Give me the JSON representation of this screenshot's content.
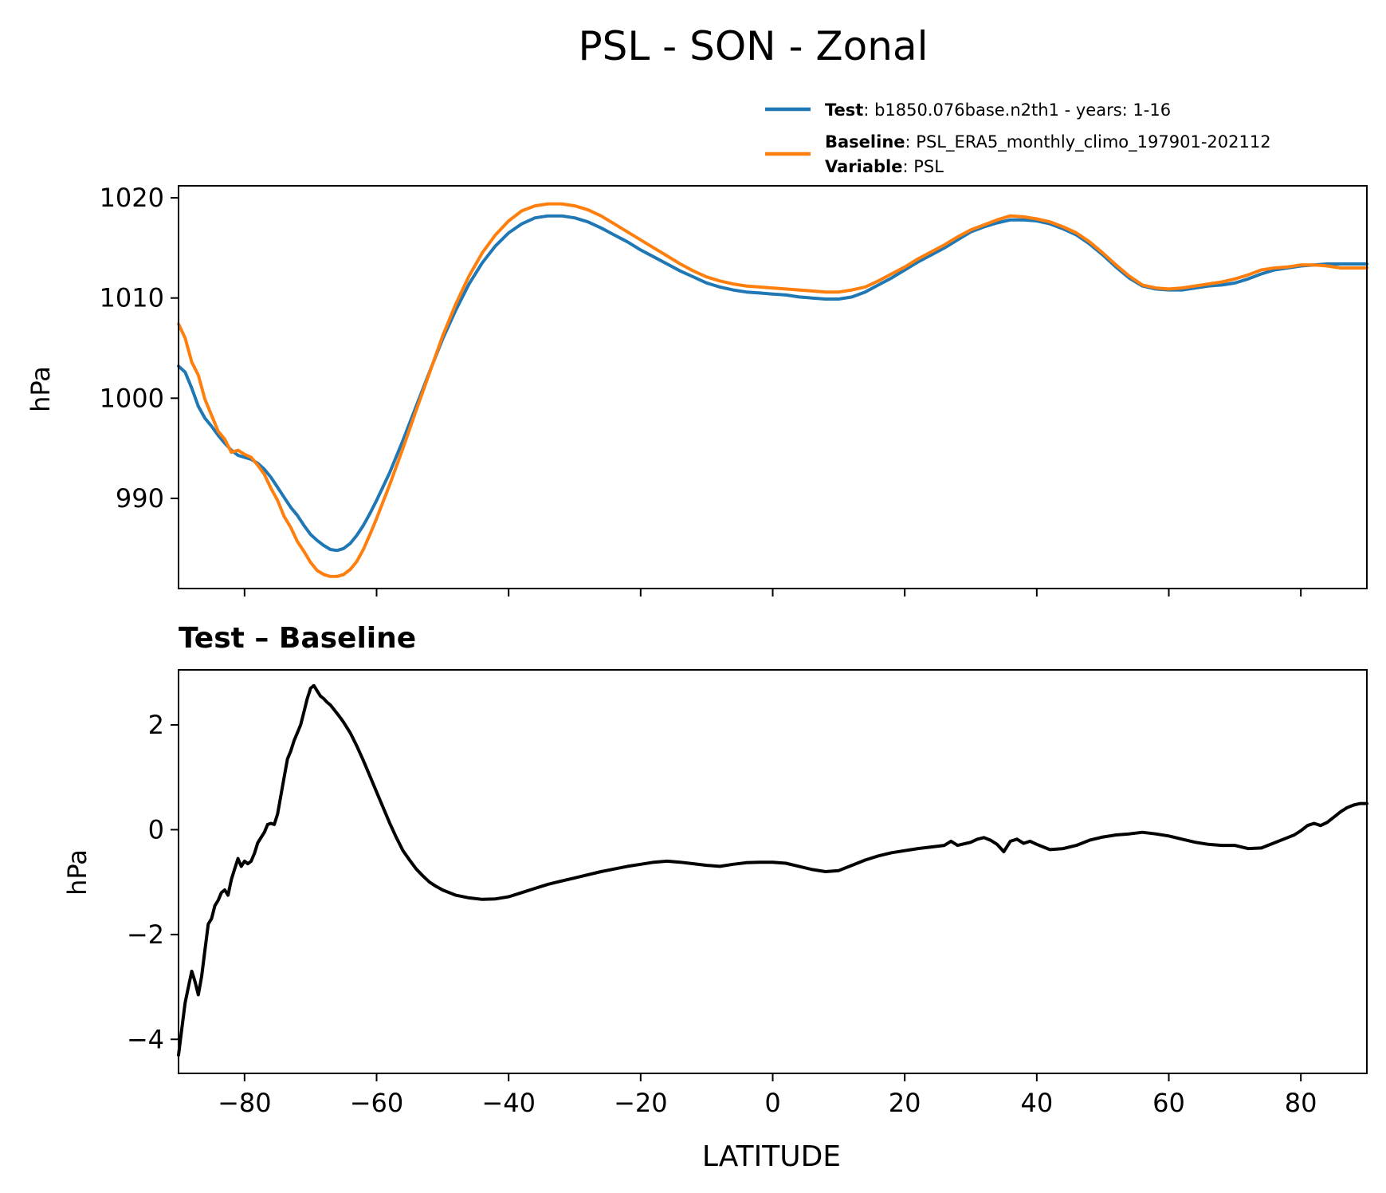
{
  "figure": {
    "title": "PSL - SON - Zonal"
  },
  "legend": {
    "placement": "above top panel, right",
    "entries": [
      {
        "key": "Test",
        "sep": ": ",
        "text": "b1850.076base.n2th1 - years: 1-16",
        "color": "#1f77b4",
        "has_line": true
      },
      {
        "key": "Baseline",
        "sep": ": ",
        "text": "PSL_ERA5_monthly_climo_197901-202112",
        "color": "#ff7f0e",
        "has_line": true
      },
      {
        "key": "Variable",
        "sep": ": ",
        "text": "PSL",
        "color": "",
        "has_line": false
      }
    ]
  },
  "chart_data": [
    {
      "type": "line",
      "title": "",
      "xlabel": "",
      "ylabel": "hPa",
      "xlim": [
        -90,
        90
      ],
      "ylim": [
        981,
        1021.2
      ],
      "xticks": [
        -80,
        -60,
        -40,
        -20,
        0,
        20,
        40,
        60,
        80
      ],
      "yticks": [
        990,
        1000,
        1010,
        1020
      ],
      "show_xtick_labels": false,
      "grid": false,
      "series": [
        {
          "name": "Test",
          "color": "#1f77b4",
          "x": [
            -90,
            -89,
            -88,
            -87,
            -86,
            -85,
            -84,
            -83,
            -82,
            -81,
            -80,
            -79,
            -78,
            -77,
            -76,
            -75,
            -74,
            -73,
            -72,
            -71,
            -70,
            -69,
            -68,
            -67,
            -66,
            -65,
            -64,
            -63,
            -62,
            -61,
            -60,
            -58,
            -56,
            -54,
            -52,
            -50,
            -48,
            -46,
            -44,
            -42,
            -40,
            -38,
            -36,
            -34,
            -32,
            -30,
            -28,
            -26,
            -24,
            -22,
            -20,
            -18,
            -16,
            -14,
            -12,
            -10,
            -8,
            -6,
            -4,
            -2,
            0,
            2,
            4,
            6,
            8,
            10,
            12,
            14,
            16,
            18,
            20,
            22,
            24,
            26,
            28,
            30,
            32,
            34,
            36,
            38,
            40,
            42,
            44,
            46,
            48,
            50,
            52,
            54,
            56,
            58,
            60,
            62,
            64,
            66,
            68,
            70,
            72,
            74,
            76,
            78,
            80,
            82,
            84,
            86,
            88,
            90
          ],
          "y": [
            1003.2,
            1002.6,
            1001.0,
            999.2,
            998.0,
            997.2,
            996.3,
            995.5,
            994.8,
            994.3,
            994.1,
            993.9,
            993.5,
            992.9,
            992.1,
            991.1,
            990.1,
            989.1,
            988.3,
            987.3,
            986.4,
            985.8,
            985.3,
            984.9,
            984.8,
            985.0,
            985.5,
            986.3,
            987.3,
            988.5,
            989.8,
            992.6,
            995.8,
            999.2,
            1002.6,
            1005.9,
            1008.8,
            1011.4,
            1013.5,
            1015.2,
            1016.5,
            1017.4,
            1018.0,
            1018.2,
            1018.2,
            1018.0,
            1017.6,
            1017.0,
            1016.3,
            1015.6,
            1014.8,
            1014.1,
            1013.4,
            1012.7,
            1012.1,
            1011.5,
            1011.1,
            1010.8,
            1010.6,
            1010.5,
            1010.4,
            1010.3,
            1010.1,
            1010.0,
            1009.9,
            1009.9,
            1010.1,
            1010.6,
            1011.3,
            1012.0,
            1012.8,
            1013.6,
            1014.3,
            1015.0,
            1015.8,
            1016.6,
            1017.1,
            1017.5,
            1017.8,
            1017.8,
            1017.7,
            1017.4,
            1016.9,
            1016.3,
            1015.4,
            1014.3,
            1013.1,
            1012.0,
            1011.2,
            1010.9,
            1010.8,
            1010.8,
            1011.0,
            1011.2,
            1011.3,
            1011.5,
            1011.9,
            1012.4,
            1012.8,
            1013.0,
            1013.2,
            1013.3,
            1013.4,
            1013.4,
            1013.4,
            1013.4
          ]
        },
        {
          "name": "Baseline",
          "color": "#ff7f0e",
          "x": [
            -90,
            -89,
            -88,
            -87,
            -86,
            -85,
            -84,
            -83,
            -82,
            -81,
            -80,
            -79,
            -78,
            -77,
            -76,
            -75,
            -74,
            -73,
            -72,
            -71,
            -70,
            -69,
            -68,
            -67,
            -66,
            -65,
            -64,
            -63,
            -62,
            -61,
            -60,
            -58,
            -56,
            -54,
            -52,
            -50,
            -48,
            -46,
            -44,
            -42,
            -40,
            -38,
            -36,
            -34,
            -32,
            -30,
            -28,
            -26,
            -24,
            -22,
            -20,
            -18,
            -16,
            -14,
            -12,
            -10,
            -8,
            -6,
            -4,
            -2,
            0,
            2,
            4,
            6,
            8,
            10,
            12,
            14,
            16,
            18,
            20,
            22,
            24,
            26,
            28,
            30,
            32,
            34,
            36,
            38,
            40,
            42,
            44,
            46,
            48,
            50,
            52,
            54,
            56,
            58,
            60,
            62,
            64,
            66,
            68,
            70,
            72,
            74,
            76,
            78,
            80,
            82,
            84,
            86,
            88,
            90
          ],
          "y": [
            1007.4,
            1006.0,
            1003.6,
            1002.3,
            999.9,
            998.3,
            996.7,
            995.9,
            994.6,
            994.8,
            994.4,
            994.1,
            993.3,
            992.4,
            991.0,
            989.8,
            988.2,
            987.1,
            985.7,
            984.7,
            983.6,
            982.8,
            982.4,
            982.2,
            982.2,
            982.4,
            982.9,
            983.7,
            984.9,
            986.4,
            988.0,
            991.4,
            995.0,
            998.8,
            1002.5,
            1006.2,
            1009.4,
            1012.2,
            1014.5,
            1016.3,
            1017.7,
            1018.7,
            1019.2,
            1019.4,
            1019.4,
            1019.2,
            1018.8,
            1018.2,
            1017.4,
            1016.6,
            1015.8,
            1015.0,
            1014.2,
            1013.4,
            1012.7,
            1012.1,
            1011.7,
            1011.4,
            1011.2,
            1011.1,
            1011.0,
            1010.9,
            1010.8,
            1010.7,
            1010.6,
            1010.6,
            1010.8,
            1011.1,
            1011.7,
            1012.4,
            1013.1,
            1013.9,
            1014.6,
            1015.3,
            1016.1,
            1016.8,
            1017.3,
            1017.8,
            1018.2,
            1018.1,
            1017.9,
            1017.6,
            1017.1,
            1016.5,
            1015.6,
            1014.5,
            1013.3,
            1012.2,
            1011.3,
            1011.0,
            1010.9,
            1011.0,
            1011.2,
            1011.4,
            1011.6,
            1011.9,
            1012.3,
            1012.8,
            1013.0,
            1013.1,
            1013.3,
            1013.3,
            1013.2,
            1013.0,
            1013.0,
            1013.0
          ]
        }
      ]
    },
    {
      "type": "line",
      "title": "Test – Baseline",
      "xlabel": "LATITUDE",
      "ylabel": "hPa",
      "xlim": [
        -90,
        90
      ],
      "ylim": [
        -4.65,
        3.05
      ],
      "xticks": [
        -80,
        -60,
        -40,
        -20,
        0,
        20,
        40,
        60,
        80
      ],
      "yticks": [
        -4,
        -2,
        0,
        2
      ],
      "show_xtick_labels": true,
      "grid": false,
      "series": [
        {
          "name": "",
          "color": "#000000",
          "x": [
            -90,
            -89.5,
            -89,
            -88.5,
            -88,
            -87.5,
            -87,
            -86.5,
            -86,
            -85.5,
            -85,
            -84.5,
            -84,
            -83.5,
            -83,
            -82.5,
            -82,
            -81.5,
            -81,
            -80.5,
            -80,
            -79.5,
            -79,
            -78.5,
            -78,
            -77.5,
            -77,
            -76.5,
            -76,
            -75.5,
            -75,
            -74.5,
            -74,
            -73.5,
            -73,
            -72.5,
            -72,
            -71.5,
            -71,
            -70.5,
            -70,
            -69.5,
            -69,
            -68.5,
            -68,
            -67.5,
            -67,
            -66.5,
            -66,
            -65.5,
            -65,
            -64,
            -63,
            -62,
            -61,
            -60,
            -59,
            -58,
            -57,
            -56,
            -55,
            -54,
            -53,
            -52,
            -51,
            -50,
            -48,
            -46,
            -44,
            -42,
            -40,
            -38,
            -36,
            -34,
            -32,
            -30,
            -28,
            -26,
            -24,
            -22,
            -20,
            -18,
            -16,
            -14,
            -12,
            -10,
            -8,
            -6,
            -4,
            -2,
            0,
            2,
            4,
            6,
            8,
            10,
            12,
            14,
            16,
            18,
            20,
            22,
            24,
            26,
            27,
            28,
            30,
            31,
            32,
            33,
            34,
            35,
            36,
            37,
            38,
            39,
            40,
            41,
            42,
            44,
            46,
            48,
            50,
            52,
            54,
            56,
            58,
            60,
            62,
            64,
            66,
            68,
            70,
            72,
            74,
            76,
            78,
            79,
            80,
            81,
            82,
            83,
            84,
            85,
            86,
            87,
            88,
            89,
            90
          ],
          "y": [
            -4.3,
            -3.8,
            -3.3,
            -3.0,
            -2.7,
            -2.9,
            -3.15,
            -2.8,
            -2.3,
            -1.8,
            -1.7,
            -1.45,
            -1.35,
            -1.2,
            -1.15,
            -1.25,
            -0.95,
            -0.75,
            -0.55,
            -0.7,
            -0.6,
            -0.65,
            -0.6,
            -0.45,
            -0.25,
            -0.15,
            -0.05,
            0.1,
            0.12,
            0.1,
            0.3,
            0.65,
            1.0,
            1.35,
            1.5,
            1.7,
            1.85,
            2.0,
            2.25,
            2.5,
            2.7,
            2.75,
            2.65,
            2.55,
            2.5,
            2.43,
            2.38,
            2.3,
            2.22,
            2.14,
            2.05,
            1.85,
            1.6,
            1.32,
            1.02,
            0.72,
            0.42,
            0.12,
            -0.15,
            -0.4,
            -0.58,
            -0.75,
            -0.88,
            -1.0,
            -1.08,
            -1.15,
            -1.25,
            -1.3,
            -1.33,
            -1.32,
            -1.28,
            -1.2,
            -1.12,
            -1.04,
            -0.98,
            -0.92,
            -0.86,
            -0.8,
            -0.75,
            -0.7,
            -0.66,
            -0.62,
            -0.6,
            -0.62,
            -0.65,
            -0.68,
            -0.7,
            -0.66,
            -0.63,
            -0.62,
            -0.62,
            -0.64,
            -0.7,
            -0.76,
            -0.8,
            -0.78,
            -0.68,
            -0.58,
            -0.5,
            -0.44,
            -0.4,
            -0.36,
            -0.33,
            -0.3,
            -0.22,
            -0.3,
            -0.24,
            -0.18,
            -0.15,
            -0.2,
            -0.28,
            -0.42,
            -0.22,
            -0.18,
            -0.26,
            -0.22,
            -0.28,
            -0.33,
            -0.38,
            -0.36,
            -0.3,
            -0.2,
            -0.14,
            -0.1,
            -0.08,
            -0.05,
            -0.08,
            -0.12,
            -0.18,
            -0.24,
            -0.28,
            -0.3,
            -0.3,
            -0.36,
            -0.35,
            -0.25,
            -0.15,
            -0.1,
            -0.02,
            0.08,
            0.12,
            0.08,
            0.14,
            0.24,
            0.34,
            0.42,
            0.47,
            0.5,
            0.5
          ]
        }
      ]
    }
  ]
}
